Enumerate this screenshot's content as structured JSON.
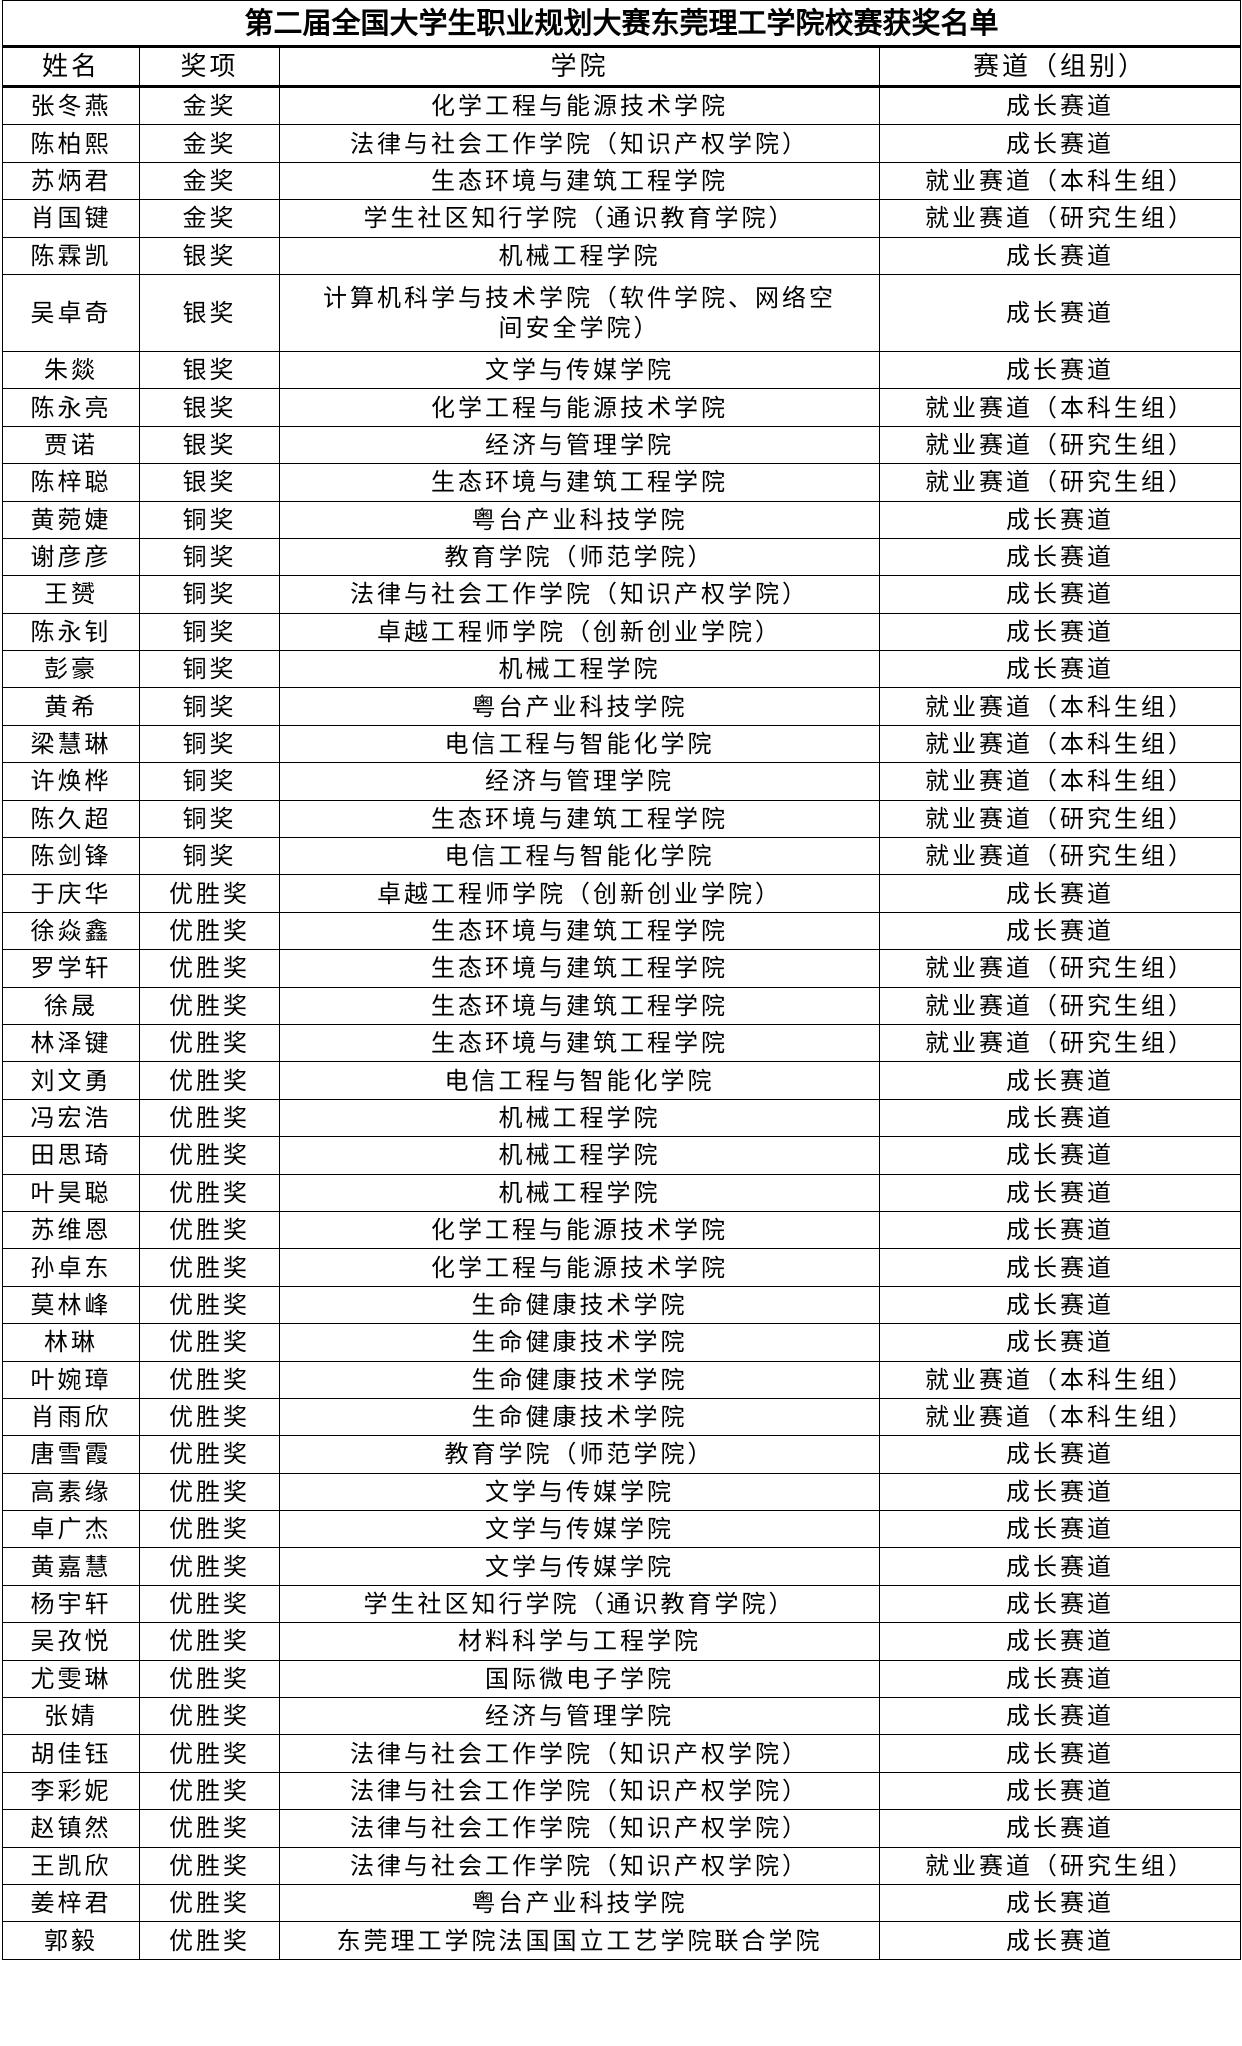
{
  "title": "第二届全国大学生职业规划大赛东莞理工学院校赛获奖名单",
  "headers": {
    "name": "姓名",
    "award": "奖项",
    "college": "学院",
    "track": "赛道（组别）"
  },
  "rows": [
    [
      "张冬燕",
      "金奖",
      "化学工程与能源技术学院",
      "成长赛道"
    ],
    [
      "陈柏熙",
      "金奖",
      "法律与社会工作学院（知识产权学院）",
      "成长赛道"
    ],
    [
      "苏炳君",
      "金奖",
      "生态环境与建筑工程学院",
      "就业赛道（本科生组）"
    ],
    [
      "肖国键",
      "金奖",
      "学生社区知行学院（通识教育学院）",
      "就业赛道（研究生组）"
    ],
    [
      "陈霖凯",
      "银奖",
      "机械工程学院",
      "成长赛道"
    ],
    [
      "吴卓奇",
      "银奖",
      "计算机科学与技术学院（软件学院、网络空间安全学院）",
      "成长赛道"
    ],
    [
      "朱燚",
      "银奖",
      "文学与传媒学院",
      "成长赛道"
    ],
    [
      "陈永亮",
      "银奖",
      "化学工程与能源技术学院",
      "就业赛道（本科生组）"
    ],
    [
      "贾诺",
      "银奖",
      "经济与管理学院",
      "就业赛道（研究生组）"
    ],
    [
      "陈梓聪",
      "银奖",
      "生态环境与建筑工程学院",
      "就业赛道（研究生组）"
    ],
    [
      "黄菀婕",
      "铜奖",
      "粤台产业科技学院",
      "成长赛道"
    ],
    [
      "谢彦彦",
      "铜奖",
      "教育学院（师范学院）",
      "成长赛道"
    ],
    [
      "王赟",
      "铜奖",
      "法律与社会工作学院（知识产权学院）",
      "成长赛道"
    ],
    [
      "陈永钊",
      "铜奖",
      "卓越工程师学院（创新创业学院）",
      "成长赛道"
    ],
    [
      "彭豪",
      "铜奖",
      "机械工程学院",
      "成长赛道"
    ],
    [
      "黄希",
      "铜奖",
      "粤台产业科技学院",
      "就业赛道（本科生组）"
    ],
    [
      "梁慧琳",
      "铜奖",
      "电信工程与智能化学院",
      "就业赛道（本科生组）"
    ],
    [
      "许焕桦",
      "铜奖",
      "经济与管理学院",
      "就业赛道（本科生组）"
    ],
    [
      "陈久超",
      "铜奖",
      "生态环境与建筑工程学院",
      "就业赛道（研究生组）"
    ],
    [
      "陈剑锋",
      "铜奖",
      "电信工程与智能化学院",
      "就业赛道（研究生组）"
    ],
    [
      "于庆华",
      "优胜奖",
      "卓越工程师学院（创新创业学院）",
      "成长赛道"
    ],
    [
      "徐焱鑫",
      "优胜奖",
      "生态环境与建筑工程学院",
      "成长赛道"
    ],
    [
      "罗学轩",
      "优胜奖",
      "生态环境与建筑工程学院",
      "就业赛道（研究生组）"
    ],
    [
      "徐晟",
      "优胜奖",
      "生态环境与建筑工程学院",
      "就业赛道（研究生组）"
    ],
    [
      "林泽键",
      "优胜奖",
      "生态环境与建筑工程学院",
      "就业赛道（研究生组）"
    ],
    [
      "刘文勇",
      "优胜奖",
      "电信工程与智能化学院",
      "成长赛道"
    ],
    [
      "冯宏浩",
      "优胜奖",
      "机械工程学院",
      "成长赛道"
    ],
    [
      "田思琦",
      "优胜奖",
      "机械工程学院",
      "成长赛道"
    ],
    [
      "叶昊聪",
      "优胜奖",
      "机械工程学院",
      "成长赛道"
    ],
    [
      "苏维恩",
      "优胜奖",
      "化学工程与能源技术学院",
      "成长赛道"
    ],
    [
      "孙卓东",
      "优胜奖",
      "化学工程与能源技术学院",
      "成长赛道"
    ],
    [
      "莫林峰",
      "优胜奖",
      "生命健康技术学院",
      "成长赛道"
    ],
    [
      "林琳",
      "优胜奖",
      "生命健康技术学院",
      "成长赛道"
    ],
    [
      "叶婉璋",
      "优胜奖",
      "生命健康技术学院",
      "就业赛道（本科生组）"
    ],
    [
      "肖雨欣",
      "优胜奖",
      "生命健康技术学院",
      "就业赛道（本科生组）"
    ],
    [
      "唐雪霞",
      "优胜奖",
      "教育学院（师范学院）",
      "成长赛道"
    ],
    [
      "高素缘",
      "优胜奖",
      "文学与传媒学院",
      "成长赛道"
    ],
    [
      "卓广杰",
      "优胜奖",
      "文学与传媒学院",
      "成长赛道"
    ],
    [
      "黄嘉慧",
      "优胜奖",
      "文学与传媒学院",
      "成长赛道"
    ],
    [
      "杨宇轩",
      "优胜奖",
      "学生社区知行学院（通识教育学院）",
      "成长赛道"
    ],
    [
      "吴孜悦",
      "优胜奖",
      "材料科学与工程学院",
      "成长赛道"
    ],
    [
      "尤雯琳",
      "优胜奖",
      "国际微电子学院",
      "成长赛道"
    ],
    [
      "张婧",
      "优胜奖",
      "经济与管理学院",
      "成长赛道"
    ],
    [
      "胡佳钰",
      "优胜奖",
      "法律与社会工作学院（知识产权学院）",
      "成长赛道"
    ],
    [
      "李彩妮",
      "优胜奖",
      "法律与社会工作学院（知识产权学院）",
      "成长赛道"
    ],
    [
      "赵镇然",
      "优胜奖",
      "法律与社会工作学院（知识产权学院）",
      "成长赛道"
    ],
    [
      "王凯欣",
      "优胜奖",
      "法律与社会工作学院（知识产权学院）",
      "就业赛道（研究生组）"
    ],
    [
      "姜梓君",
      "优胜奖",
      "粤台产业科技学院",
      "成长赛道"
    ],
    [
      "郭毅",
      "优胜奖",
      "东莞理工学院法国国立工艺学院联合学院",
      "成长赛道"
    ]
  ]
}
